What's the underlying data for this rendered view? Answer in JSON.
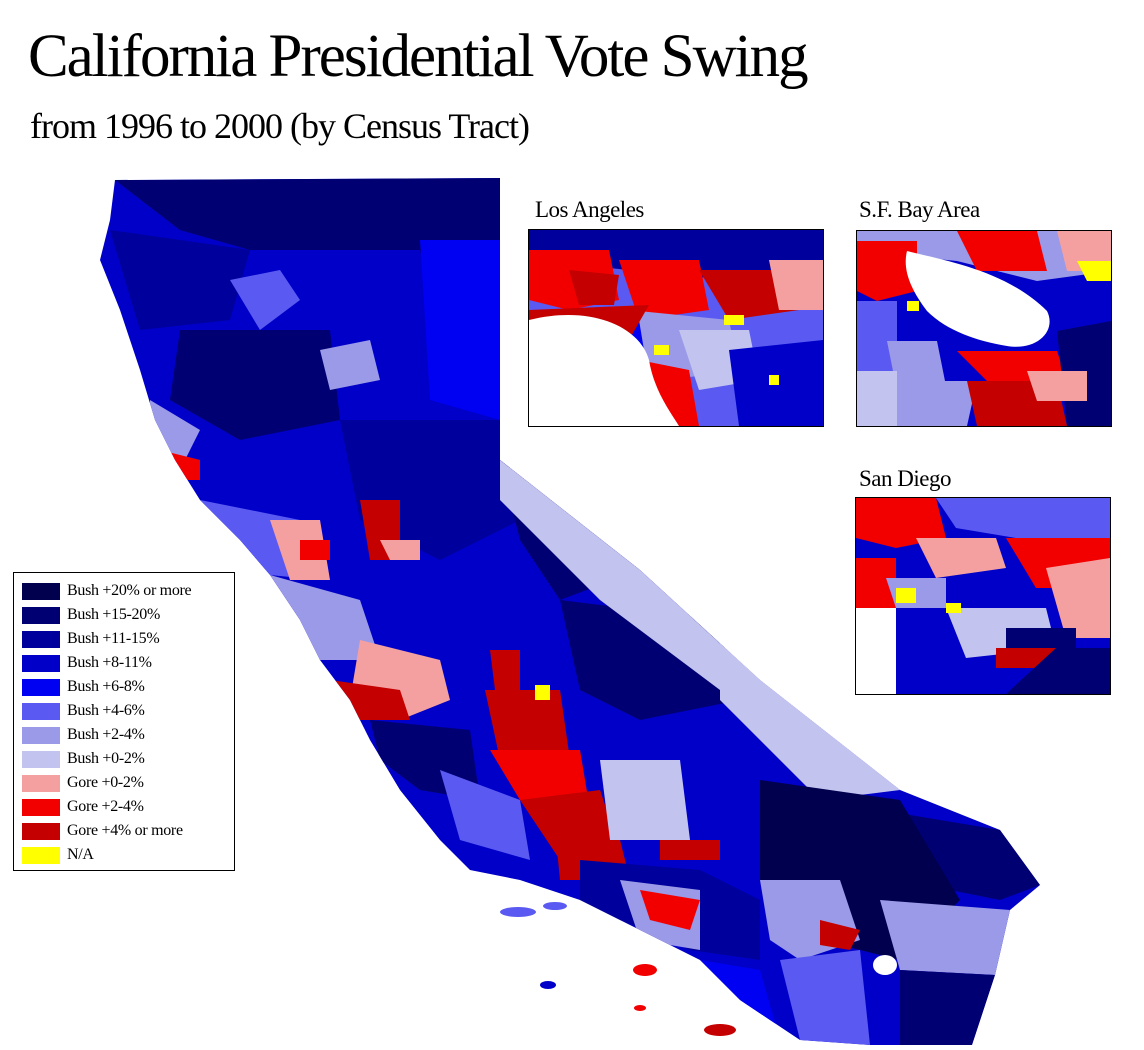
{
  "title": "California Presidential Vote Swing",
  "subtitle": "from 1996 to 2000 (by Census Tract)",
  "insets": [
    {
      "label": "Los Angeles"
    },
    {
      "label": "S.F. Bay Area"
    },
    {
      "label": "San Diego"
    }
  ],
  "legend": [
    {
      "label": "Bush +20% or more",
      "color": "#00004f"
    },
    {
      "label": "Bush +15-20%",
      "color": "#000072"
    },
    {
      "label": "Bush +11-15%",
      "color": "#00009c"
    },
    {
      "label": "Bush +8-11%",
      "color": "#0000c8"
    },
    {
      "label": "Bush +6-8%",
      "color": "#0000f2"
    },
    {
      "label": "Bush +4-6%",
      "color": "#5a5af2"
    },
    {
      "label": "Bush +2-4%",
      "color": "#9a9ae8"
    },
    {
      "label": "Bush +0-2%",
      "color": "#c3c3f0"
    },
    {
      "label": "Gore +0-2%",
      "color": "#f4a0a0"
    },
    {
      "label": "Gore +2-4%",
      "color": "#f20000"
    },
    {
      "label": "Gore +4% or more",
      "color": "#c40000"
    },
    {
      "label": "N/A",
      "color": "#ffff00"
    }
  ]
}
